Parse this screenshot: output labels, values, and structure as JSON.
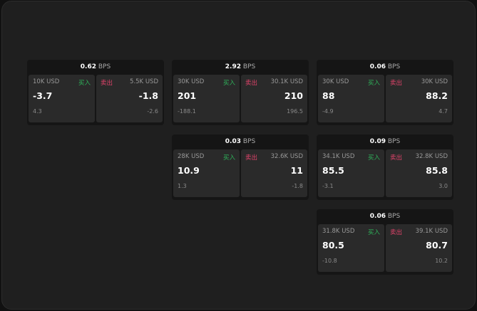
{
  "labels": {
    "buy": "买入",
    "sell": "卖出",
    "unit": "BPS"
  },
  "widgets": [
    {
      "spread": "0.62",
      "bid": {
        "size": "10K USD",
        "price": "-3.7",
        "change": "4.3"
      },
      "ask": {
        "size": "5.5K USD",
        "price": "-1.8",
        "change": "-2.6"
      }
    },
    {
      "spread": "2.92",
      "bid": {
        "size": "30K USD",
        "price": "201",
        "change": "-188.1"
      },
      "ask": {
        "size": "30.1K USD",
        "price": "210",
        "change": "196.5"
      }
    },
    {
      "spread": "0.06",
      "bid": {
        "size": "30K USD",
        "price": "88",
        "change": "-4.9"
      },
      "ask": {
        "size": "30K USD",
        "price": "88.2",
        "change": "4.7"
      }
    },
    {
      "spread": "0.03",
      "bid": {
        "size": "28K USD",
        "price": "10.9",
        "change": "1.3"
      },
      "ask": {
        "size": "32.6K USD",
        "price": "11",
        "change": "-1.8"
      }
    },
    {
      "spread": "0.09",
      "bid": {
        "size": "34.1K USD",
        "price": "85.5",
        "change": "-3.1"
      },
      "ask": {
        "size": "32.8K USD",
        "price": "85.8",
        "change": "3.0"
      }
    },
    {
      "spread": "0.06",
      "bid": {
        "size": "31.8K USD",
        "price": "80.5",
        "change": "-10.8"
      },
      "ask": {
        "size": "39.1K USD",
        "price": "80.7",
        "change": "10.2"
      }
    }
  ]
}
